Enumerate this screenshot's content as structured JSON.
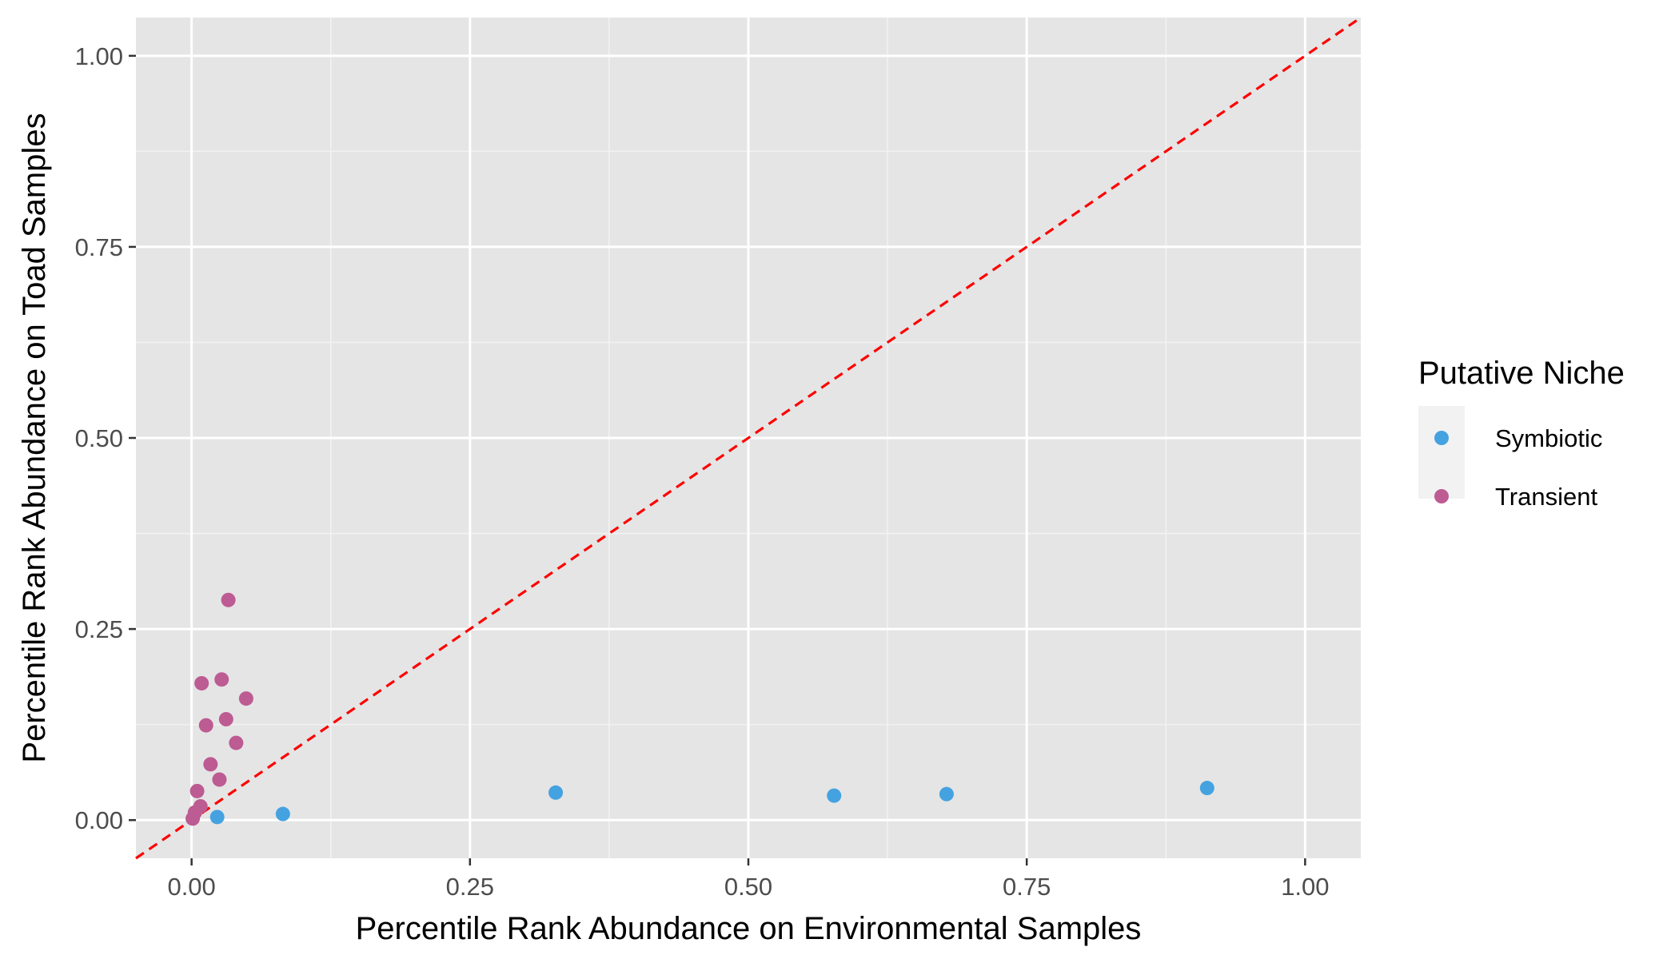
{
  "chart_data": {
    "type": "scatter",
    "title": "",
    "xlabel": "Percentile Rank Abundance on Environmental Samples",
    "ylabel": "Percentile Rank Abundance on Toad Samples",
    "xlim": [
      -0.05,
      1.05
    ],
    "ylim": [
      -0.05,
      1.05
    ],
    "x_ticks": [
      0,
      0.25,
      0.5,
      0.75,
      1
    ],
    "y_ticks": [
      0,
      0.25,
      0.5,
      0.75,
      1
    ],
    "x_tick_labels": [
      "0.00",
      "0.25",
      "0.50",
      "0.75",
      "1.00"
    ],
    "y_tick_labels": [
      "0.00",
      "0.25",
      "0.50",
      "0.75",
      "1.00"
    ],
    "grid": true,
    "legend": {
      "title": "Putative Niche",
      "position": "right"
    },
    "reference_line": {
      "slope": 1,
      "intercept": 0,
      "color": "#ff0000",
      "style": "dashed"
    },
    "series": [
      {
        "name": "Symbiotic",
        "color": "#45a2e0",
        "points": [
          {
            "x": 0.023,
            "y": 0.004
          },
          {
            "x": 0.082,
            "y": 0.008
          },
          {
            "x": 0.327,
            "y": 0.036
          },
          {
            "x": 0.577,
            "y": 0.032
          },
          {
            "x": 0.678,
            "y": 0.034
          },
          {
            "x": 0.912,
            "y": 0.042
          }
        ]
      },
      {
        "name": "Transient",
        "color": "#bd5b93",
        "points": [
          {
            "x": 0.001,
            "y": 0.002
          },
          {
            "x": 0.003,
            "y": 0.01
          },
          {
            "x": 0.008,
            "y": 0.018
          },
          {
            "x": 0.005,
            "y": 0.038
          },
          {
            "x": 0.017,
            "y": 0.073
          },
          {
            "x": 0.025,
            "y": 0.053
          },
          {
            "x": 0.013,
            "y": 0.124
          },
          {
            "x": 0.04,
            "y": 0.101
          },
          {
            "x": 0.031,
            "y": 0.132
          },
          {
            "x": 0.009,
            "y": 0.179
          },
          {
            "x": 0.027,
            "y": 0.184
          },
          {
            "x": 0.049,
            "y": 0.159
          },
          {
            "x": 0.033,
            "y": 0.288
          }
        ]
      }
    ]
  }
}
